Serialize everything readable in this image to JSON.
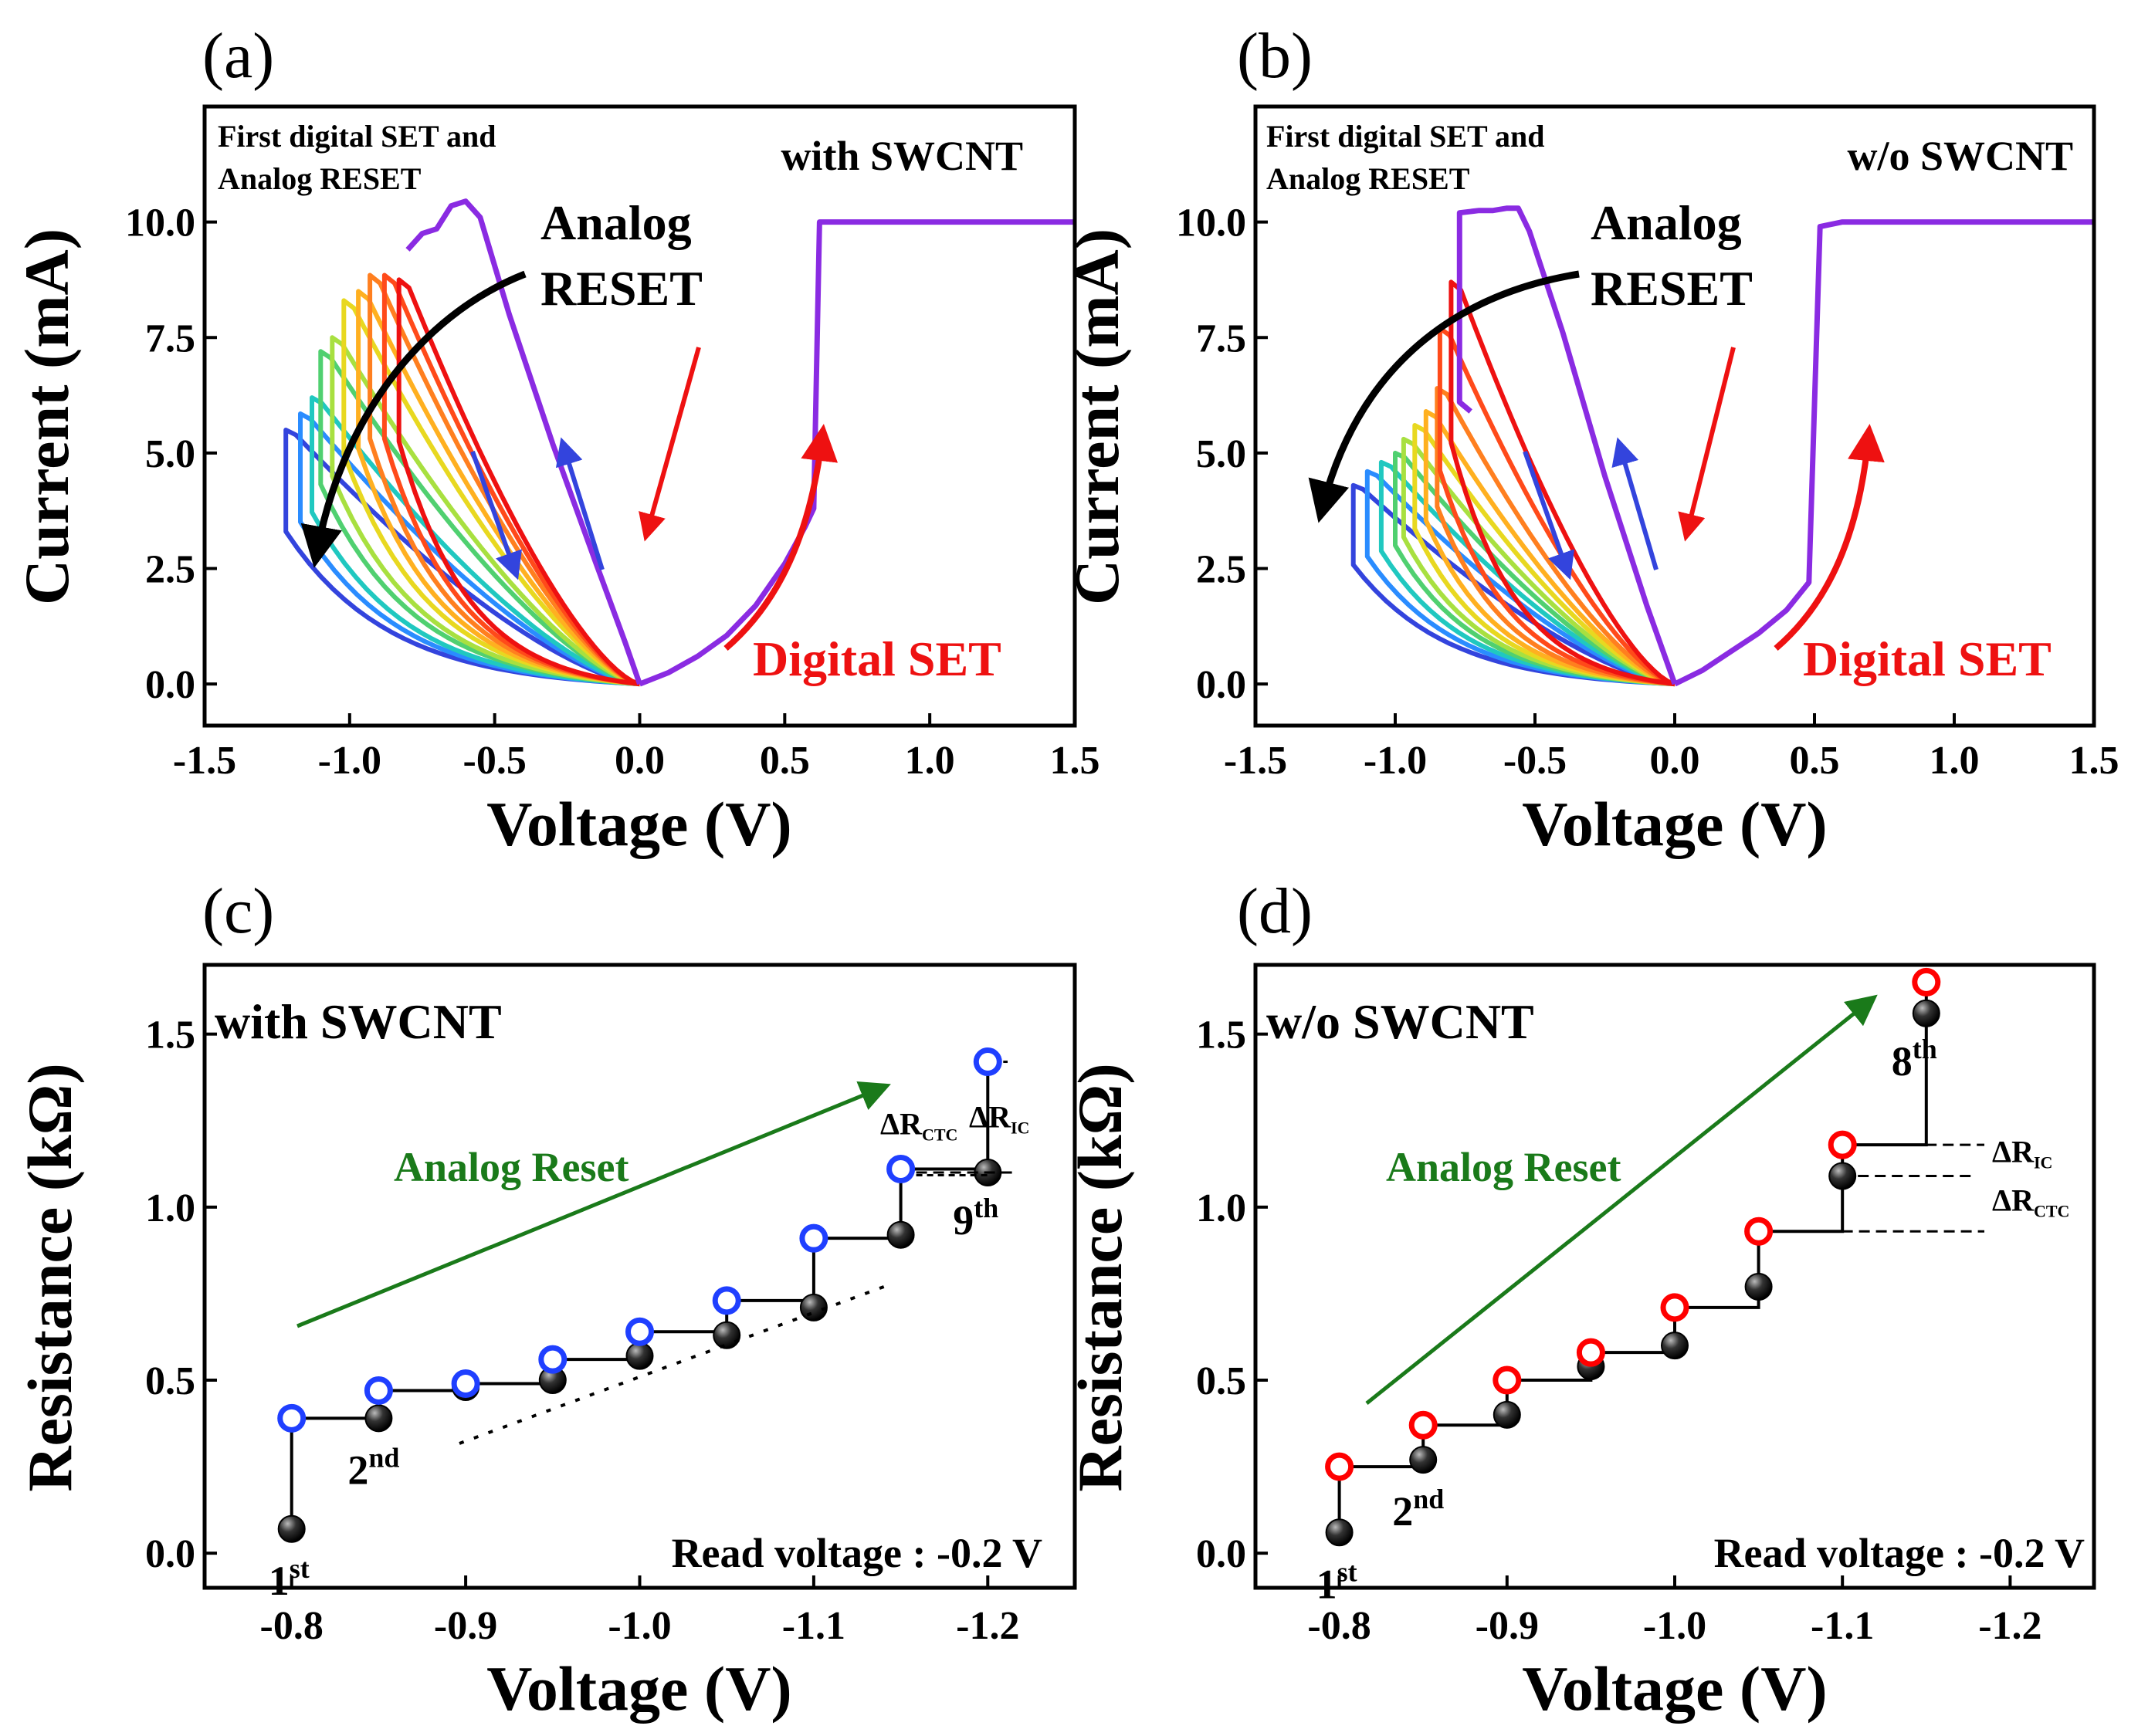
{
  "colors": {
    "purple": "#8a2be2",
    "blue": "#3344dd",
    "red": "#ee1111",
    "black": "#000000",
    "green": "#1a7a1a",
    "open_blue": "#1f3fff",
    "open_red": "#ff0000",
    "sweep_palette": [
      "#ee1111",
      "#ff4a1a",
      "#ff7f1f",
      "#ffb020",
      "#e8d820",
      "#a8e040",
      "#50d070",
      "#20c8c0",
      "#2a8cff",
      "#3344dd"
    ]
  },
  "chart_data": [
    {
      "panel": "(a)",
      "type": "line",
      "title": "with SWCNT",
      "xlabel": "Voltage (V)",
      "ylabel": "Current (mA)",
      "xlim": [
        -1.5,
        1.5
      ],
      "ylim": [
        -0.9,
        12.5
      ],
      "xticks": [
        "-1.5",
        "-1.0",
        "-0.5",
        "0.0",
        "0.5",
        "1.0",
        "1.5"
      ],
      "yticks": [
        "0.0",
        "2.5",
        "5.0",
        "7.5",
        "10.0"
      ],
      "annotations": {
        "first": "First digital SET and",
        "second": "Analog RESET",
        "analog1": "Analog",
        "analog2": "RESET",
        "digital": "Digital SET"
      },
      "set_curve": [
        [
          0,
          0
        ],
        [
          0.1,
          0.25
        ],
        [
          0.2,
          0.6
        ],
        [
          0.3,
          1.05
        ],
        [
          0.4,
          1.7
        ],
        [
          0.5,
          2.6
        ],
        [
          0.57,
          3.4
        ],
        [
          0.6,
          3.8
        ],
        [
          0.62,
          10
        ],
        [
          1.5,
          10
        ]
      ],
      "first_reset": [
        [
          0,
          0
        ],
        [
          -0.05,
          0.9
        ],
        [
          -0.15,
          2.6
        ],
        [
          -0.3,
          5.2
        ],
        [
          -0.45,
          8
        ],
        [
          -0.55,
          10.1
        ],
        [
          -0.6,
          10.45
        ],
        [
          -0.65,
          10.35
        ],
        [
          -0.7,
          9.85
        ],
        [
          -0.75,
          9.75
        ],
        [
          -0.8,
          9.4
        ]
      ],
      "sweeps": [
        {
          "vmin": -0.83,
          "peak": 8.75
        },
        {
          "vmin": -0.88,
          "peak": 8.85
        },
        {
          "vmin": -0.93,
          "peak": 8.85
        },
        {
          "vmin": -0.97,
          "peak": 8.5
        },
        {
          "vmin": -1.02,
          "peak": 8.3
        },
        {
          "vmin": -1.06,
          "peak": 7.5
        },
        {
          "vmin": -1.1,
          "peak": 7.2
        },
        {
          "vmin": -1.13,
          "peak": 6.2
        },
        {
          "vmin": -1.17,
          "peak": 5.85
        },
        {
          "vmin": -1.22,
          "peak": 5.5
        }
      ]
    },
    {
      "panel": "(b)",
      "type": "line",
      "title": "w/o SWCNT",
      "xlabel": "Voltage (V)",
      "ylabel": "Current (mA)",
      "xlim": [
        -1.5,
        1.5
      ],
      "ylim": [
        -0.9,
        12.5
      ],
      "xticks": [
        "-1.5",
        "-1.0",
        "-0.5",
        "0.0",
        "0.5",
        "1.0",
        "1.5"
      ],
      "yticks": [
        "0.0",
        "2.5",
        "5.0",
        "7.5",
        "10.0"
      ],
      "annotations": {
        "first": "First digital SET and",
        "second": "Analog RESET",
        "analog1": "Analog",
        "analog2": "RESET",
        "digital": "Digital SET"
      },
      "set_curve": [
        [
          0,
          0
        ],
        [
          0.1,
          0.3
        ],
        [
          0.2,
          0.7
        ],
        [
          0.3,
          1.1
        ],
        [
          0.4,
          1.6
        ],
        [
          0.48,
          2.2
        ],
        [
          0.52,
          9.9
        ],
        [
          0.6,
          10
        ],
        [
          1.5,
          10
        ]
      ],
      "first_reset": [
        [
          0,
          0
        ],
        [
          -0.1,
          1.7
        ],
        [
          -0.25,
          4.5
        ],
        [
          -0.4,
          7.6
        ],
        [
          -0.52,
          9.8
        ],
        [
          -0.56,
          10.3
        ],
        [
          -0.6,
          10.3
        ],
        [
          -0.65,
          10.25
        ],
        [
          -0.7,
          10.25
        ],
        [
          -0.77,
          10.2
        ],
        [
          -0.77,
          6.1
        ],
        [
          -0.73,
          5.9
        ]
      ],
      "sweeps": [
        {
          "vmin": -0.8,
          "peak": 8.7
        },
        {
          "vmin": -0.84,
          "peak": 7.7
        },
        {
          "vmin": -0.85,
          "peak": 6.4
        },
        {
          "vmin": -0.89,
          "peak": 5.9
        },
        {
          "vmin": -0.93,
          "peak": 5.6
        },
        {
          "vmin": -0.97,
          "peak": 5.3
        },
        {
          "vmin": -1.0,
          "peak": 5.0
        },
        {
          "vmin": -1.05,
          "peak": 4.8
        },
        {
          "vmin": -1.1,
          "peak": 4.6
        },
        {
          "vmin": -1.15,
          "peak": 4.3
        }
      ]
    },
    {
      "panel": "(c)",
      "type": "scatter",
      "title": "with SWCNT",
      "xlabel": "Voltage (V)",
      "ylabel": "Resistance (kΩ)",
      "xlim": [
        -0.75,
        -1.25
      ],
      "ylim": [
        -0.1,
        1.7
      ],
      "xticks": [
        "-0.8",
        "-0.9",
        "-1.0",
        "-1.1",
        "-1.2"
      ],
      "yticks": [
        "0.0",
        "0.5",
        "1.0",
        "1.5"
      ],
      "read_voltage": "Read voltage : -0.2 V",
      "arrow_label": "Analog Reset",
      "x": [
        -0.8,
        -0.85,
        -0.9,
        -0.95,
        -1.0,
        -1.05,
        -1.1,
        -1.15,
        -1.2
      ],
      "closed": [
        0.07,
        0.39,
        0.48,
        0.5,
        0.57,
        0.63,
        0.71,
        0.92,
        1.1
      ],
      "open": [
        0.39,
        0.47,
        0.49,
        0.56,
        0.64,
        0.73,
        0.91,
        1.11,
        1.42
      ],
      "labels": {
        "first": "1",
        "first_sup": "st",
        "second": "2",
        "second_sup": "nd",
        "last": "9",
        "last_sup": "th"
      },
      "delta_ctc": "ΔR",
      "delta_ctc_sub": "CTC",
      "delta_ic": "ΔR",
      "delta_ic_sub": "IC"
    },
    {
      "panel": "(d)",
      "type": "scatter",
      "title": "w/o SWCNT",
      "xlabel": "Voltage (V)",
      "ylabel": "Resistance (kΩ)",
      "xlim": [
        -0.75,
        -1.25
      ],
      "ylim": [
        -0.1,
        1.7
      ],
      "xticks": [
        "-0.8",
        "-0.9",
        "-1.0",
        "-1.1",
        "-1.2"
      ],
      "yticks": [
        "0.0",
        "0.5",
        "1.0",
        "1.5"
      ],
      "read_voltage": "Read voltage : -0.2 V",
      "arrow_label": "Analog Reset",
      "x": [
        -0.8,
        -0.85,
        -0.9,
        -0.95,
        -1.0,
        -1.05,
        -1.1,
        -1.15
      ],
      "closed": [
        0.06,
        0.27,
        0.4,
        0.54,
        0.6,
        0.77,
        1.09,
        1.56
      ],
      "open": [
        0.25,
        0.37,
        0.5,
        0.58,
        0.71,
        0.93,
        1.18,
        1.65
      ],
      "labels": {
        "first": "1",
        "first_sup": "st",
        "second": "2",
        "second_sup": "nd",
        "last": "8",
        "last_sup": "th"
      },
      "delta_ic": "ΔR",
      "delta_ic_sub": "IC",
      "delta_ctc": "ΔR",
      "delta_ctc_sub": "CTC"
    }
  ]
}
